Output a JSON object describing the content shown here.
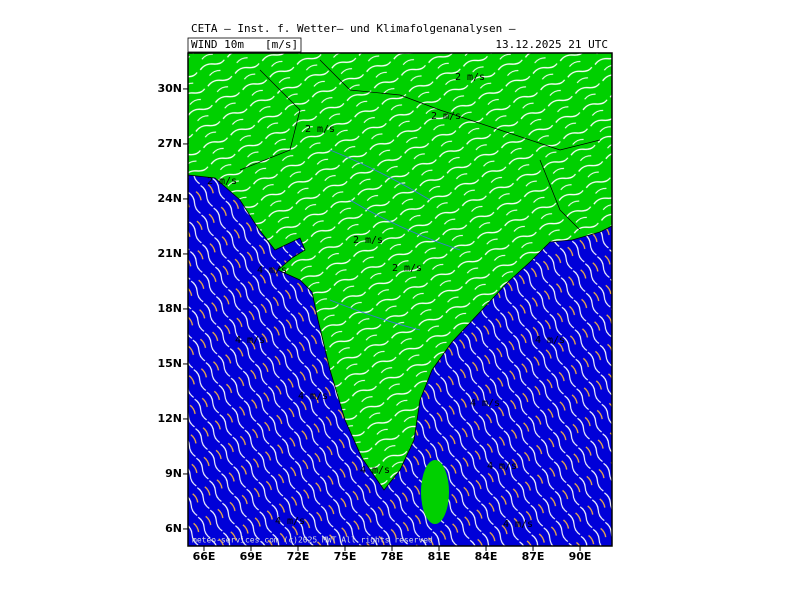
{
  "header": {
    "title": "CETA — Inst. f. Wetter— und Klimafolgenanalysen —",
    "field": "WIND 10m",
    "unit": "[m/s]",
    "valid_time": "13.12.2025 21 UTC"
  },
  "map": {
    "latlim": [
      5.07,
      31.96
    ],
    "lonlim": [
      64.98,
      92.04
    ],
    "lat_ticks": [
      {
        "value": 6,
        "label": "6N"
      },
      {
        "value": 9,
        "label": "9N"
      },
      {
        "value": 12,
        "label": "12N"
      },
      {
        "value": 15,
        "label": "15N"
      },
      {
        "value": 18,
        "label": "18N"
      },
      {
        "value": 21,
        "label": "21N"
      },
      {
        "value": 24,
        "label": "24N"
      },
      {
        "value": 27,
        "label": "27N"
      },
      {
        "value": 30,
        "label": "30N"
      }
    ],
    "lon_ticks": [
      {
        "value": 66,
        "label": "66E"
      },
      {
        "value": 69,
        "label": "69E"
      },
      {
        "value": 72,
        "label": "72E"
      },
      {
        "value": 75,
        "label": "75E"
      },
      {
        "value": 78,
        "label": "78E"
      },
      {
        "value": 81,
        "label": "81E"
      },
      {
        "value": 84,
        "label": "84E"
      },
      {
        "value": 87,
        "label": "87E"
      },
      {
        "value": 90,
        "label": "90E"
      }
    ],
    "contour_labels": [
      "2 m/s",
      "2 m/s",
      "2 m/s",
      "2 m/s",
      "2 m/s",
      "2 m/s",
      "4 m/s",
      "4 m/s",
      "4 m/s",
      "4 m/s",
      "4 m/s",
      "4 m/s",
      "4 m/s",
      "4 m/s",
      "4 m/s"
    ],
    "credit": "meteo-services.com (c)2025 MWT All rights reserved"
  }
}
